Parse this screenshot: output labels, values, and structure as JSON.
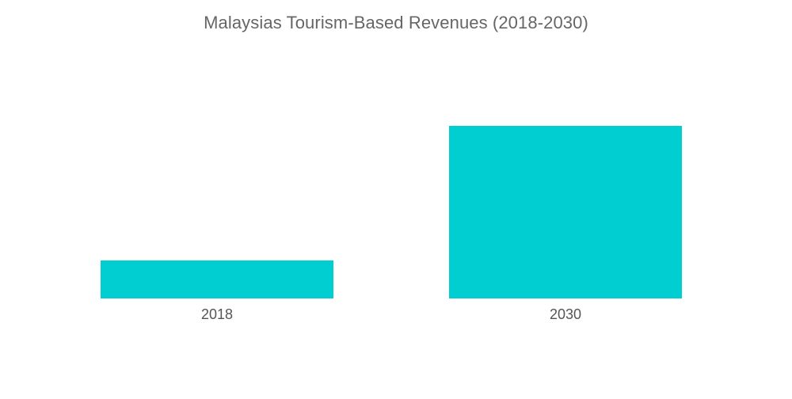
{
  "chart_data": {
    "type": "bar",
    "title": "Malaysias Tourism-Based Revenues (2018-2030)",
    "categories": [
      "2018",
      "2030"
    ],
    "values": [
      22,
      100
    ],
    "xlabel": "",
    "ylabel": "",
    "ylim": [
      0,
      100
    ],
    "grid": false,
    "legend": "none",
    "bar_color": "#00CED1"
  }
}
